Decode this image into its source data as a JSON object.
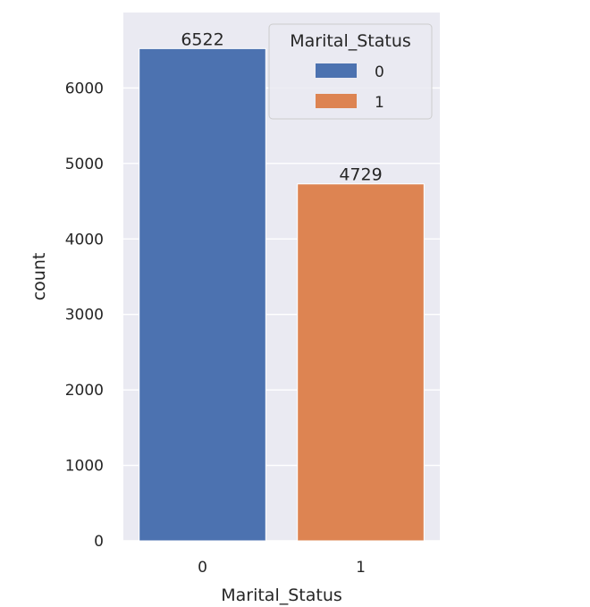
{
  "chart_data": {
    "type": "bar",
    "title": "",
    "xlabel": "Marital_Status",
    "ylabel": "count",
    "categories": [
      "0",
      "1"
    ],
    "values": [
      6522,
      4729
    ],
    "data_labels": [
      "6522",
      "4729"
    ],
    "colors": [
      "#4c72b0",
      "#dd8452"
    ],
    "ylim": [
      0,
      7000
    ],
    "yticks": [
      0,
      1000,
      2000,
      3000,
      4000,
      5000,
      6000
    ],
    "ytick_labels": [
      "0",
      "1000",
      "2000",
      "3000",
      "4000",
      "5000",
      "6000"
    ],
    "grid": true,
    "background": "#eaeaf2",
    "legend": {
      "title": "Marital_Status",
      "placement": "top-right",
      "entries": [
        {
          "label": "0",
          "color": "#4c72b0"
        },
        {
          "label": "1",
          "color": "#dd8452"
        }
      ]
    }
  }
}
